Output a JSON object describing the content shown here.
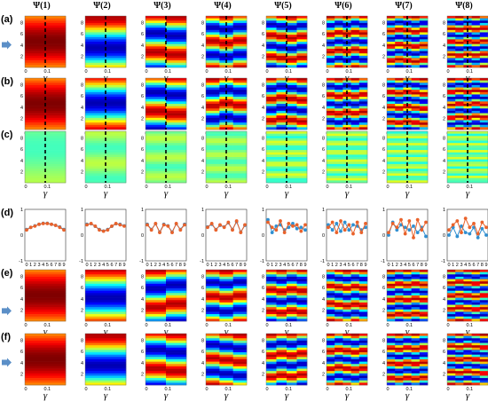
{
  "figure": {
    "row_labels": [
      "(a)",
      "(b)",
      "(c)",
      "(d)",
      "(e)",
      "(f)"
    ],
    "column_headers": [
      "Ψ(1)",
      "Ψ(2)",
      "Ψ(3)",
      "Ψ(4)",
      "Ψ(5)",
      "Ψ(6)",
      "Ψ(7)",
      "Ψ(8)"
    ],
    "heatmap_y_ticks": [
      "2",
      "4",
      "6",
      "8"
    ],
    "heatmap_x_ticks": [
      "0",
      "0.1"
    ],
    "heatmap_x_label": "γ",
    "line_y_ticks": [
      "1",
      "0",
      "-1"
    ],
    "line_x_ticks": [
      "0",
      "1",
      "2",
      "3",
      "4",
      "5",
      "6",
      "7",
      "8",
      "9"
    ],
    "arrow_color": "#5b8fc7",
    "dashed_line_color": "#000000",
    "series_colors": {
      "orange": "#e9622b",
      "blue": "#2f8fd1"
    }
  },
  "chart_data": {
    "type": "line",
    "panel_row": "(d)",
    "x": [
      0,
      1,
      2,
      3,
      4,
      5,
      6,
      7,
      8,
      9
    ],
    "ylim": [
      -1,
      1
    ],
    "panels": [
      {
        "column": "Ψ(1)",
        "series": [
          {
            "color": "orange",
            "values": [
              0.2,
              0.3,
              0.35,
              0.42,
              0.45,
              0.45,
              0.42,
              0.38,
              0.3,
              0.2
            ]
          },
          {
            "color": "blue",
            "values": [
              0.22,
              0.3,
              0.36,
              0.42,
              0.46,
              0.46,
              0.42,
              0.38,
              0.32,
              0.22
            ]
          }
        ]
      },
      {
        "column": "Ψ(2)",
        "series": [
          {
            "color": "orange",
            "values": [
              0.4,
              0.45,
              0.35,
              0.2,
              0.15,
              0.2,
              0.35,
              0.45,
              0.4,
              0.35
            ]
          },
          {
            "color": "blue",
            "values": [
              0.42,
              0.44,
              0.34,
              0.22,
              0.16,
              0.22,
              0.34,
              0.44,
              0.42,
              0.36
            ]
          }
        ]
      },
      {
        "column": "Ψ(3)",
        "series": [
          {
            "color": "orange",
            "values": [
              0.4,
              0.2,
              0.45,
              0.1,
              0.4,
              0.35,
              0.1,
              0.45,
              0.2,
              0.4
            ]
          },
          {
            "color": "blue",
            "values": [
              0.42,
              0.22,
              0.44,
              0.12,
              0.42,
              0.36,
              0.12,
              0.44,
              0.22,
              0.42
            ]
          }
        ]
      },
      {
        "column": "Ψ(4)",
        "series": [
          {
            "color": "orange",
            "values": [
              0.3,
              0.45,
              0.2,
              0.4,
              0.3,
              0.5,
              0.2,
              0.55,
              0.1,
              0.4
            ]
          },
          {
            "color": "blue",
            "values": [
              0.32,
              0.42,
              0.22,
              0.38,
              0.32,
              0.48,
              0.22,
              0.52,
              0.12,
              0.38
            ]
          }
        ]
      },
      {
        "column": "Ψ(5)",
        "series": [
          {
            "color": "orange",
            "values": [
              0.5,
              0.3,
              0.2,
              0.55,
              0.1,
              0.45,
              0.35,
              0.4,
              0.15,
              0.4
            ]
          },
          {
            "color": "blue",
            "values": [
              0.6,
              0.1,
              0.35,
              0.4,
              0.2,
              0.3,
              0.45,
              0.25,
              0.3,
              0.2
            ]
          }
        ]
      },
      {
        "column": "Ψ(6)",
        "series": [
          {
            "color": "orange",
            "values": [
              0.3,
              0.5,
              0.1,
              0.55,
              0.2,
              0.4,
              0.05,
              0.5,
              0.1,
              0.45
            ]
          },
          {
            "color": "blue",
            "values": [
              0.4,
              0.2,
              0.45,
              0.15,
              0.5,
              0.2,
              0.4,
              0.35,
              0.2,
              0.3
            ]
          }
        ]
      },
      {
        "column": "Ψ(7)",
        "series": [
          {
            "color": "orange",
            "values": [
              0.1,
              0.45,
              0.3,
              0.6,
              0.05,
              0.55,
              -0.1,
              0.6,
              0.2,
              0.5
            ]
          },
          {
            "color": "blue",
            "values": [
              0.0,
              0.5,
              0.2,
              0.4,
              0.3,
              0.2,
              0.35,
              0.1,
              0.3,
              -0.05
            ]
          }
        ]
      },
      {
        "column": "Ψ(8)",
        "series": [
          {
            "color": "orange",
            "values": [
              0.2,
              0.4,
              0.55,
              0.1,
              0.65,
              0.3,
              0.45,
              0.05,
              0.5,
              0.3
            ]
          },
          {
            "color": "blue",
            "values": [
              0.0,
              0.3,
              -0.05,
              0.35,
              0.1,
              0.05,
              0.3,
              -0.1,
              0.25,
              0.0
            ]
          }
        ]
      }
    ]
  }
}
